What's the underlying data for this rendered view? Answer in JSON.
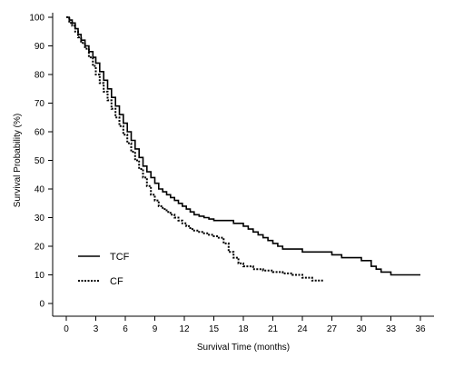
{
  "chart_data": {
    "type": "line",
    "title": "",
    "xlabel": "Survival Time (months)",
    "ylabel": "Survival Probability (%)",
    "xlim": [
      0,
      36
    ],
    "ylim": [
      0,
      100
    ],
    "x_ticks": [
      "0",
      "3",
      "6",
      "9",
      "12",
      "15",
      "18",
      "21",
      "24",
      "27",
      "30",
      "33",
      "36"
    ],
    "y_ticks": [
      "0",
      "10",
      "20",
      "30",
      "40",
      "50",
      "60",
      "70",
      "80",
      "90",
      "100"
    ],
    "grid": false,
    "legend_position": "bottom-left",
    "step": true,
    "series": [
      {
        "name": "TCF",
        "style": "solid",
        "x": [
          0,
          0.3,
          0.6,
          0.9,
          1.2,
          1.5,
          1.9,
          2.3,
          2.7,
          3.0,
          3.4,
          3.8,
          4.2,
          4.6,
          5.0,
          5.4,
          5.8,
          6.2,
          6.6,
          7.0,
          7.4,
          7.8,
          8.2,
          8.6,
          9.0,
          9.4,
          9.8,
          10.2,
          10.6,
          11.0,
          11.4,
          11.8,
          12.2,
          12.6,
          13.0,
          13.5,
          14.0,
          14.5,
          15.0,
          15.5,
          16.0,
          17.0,
          18.0,
          18.5,
          19.0,
          19.5,
          20.0,
          20.5,
          21.0,
          21.5,
          22.0,
          23.0,
          24.0,
          25.0,
          26.0,
          27.0,
          28.0,
          29.0,
          30.0,
          31.0,
          31.5,
          32.0,
          33.0,
          34.0,
          35.0,
          36.0
        ],
        "y": [
          100,
          99,
          98,
          96,
          94,
          92,
          90,
          88,
          86,
          84,
          81,
          78,
          75,
          72,
          69,
          66,
          63,
          60,
          57,
          54,
          51,
          48,
          46,
          44,
          42,
          40,
          39,
          38,
          37,
          36,
          35,
          34,
          33,
          32,
          31,
          30.5,
          30,
          29.5,
          29,
          29,
          29,
          28,
          27,
          26,
          25,
          24,
          23,
          22,
          21,
          20,
          19,
          19,
          18,
          18,
          18,
          17,
          16,
          16,
          15,
          13,
          12,
          11,
          10,
          10,
          10,
          10
        ]
      },
      {
        "name": "CF",
        "style": "dotted",
        "x": [
          0,
          0.3,
          0.6,
          0.9,
          1.2,
          1.5,
          1.9,
          2.3,
          2.7,
          3.0,
          3.4,
          3.8,
          4.2,
          4.6,
          5.0,
          5.4,
          5.8,
          6.2,
          6.6,
          7.0,
          7.4,
          7.8,
          8.2,
          8.6,
          9.0,
          9.4,
          9.8,
          10.2,
          10.6,
          11.0,
          11.4,
          11.8,
          12.2,
          12.6,
          13.0,
          13.5,
          14.0,
          14.5,
          15.0,
          15.5,
          16.0,
          16.5,
          17.0,
          17.5,
          18.0,
          19.0,
          20.0,
          21.0,
          22.0,
          23.0,
          24.0,
          25.0,
          26.0
        ],
        "y": [
          100,
          98,
          97,
          95,
          93,
          91,
          89,
          86,
          83,
          80,
          77,
          74,
          71,
          68,
          65,
          62,
          59,
          56,
          53,
          50,
          47,
          44,
          41,
          38,
          36,
          34,
          33,
          32,
          31,
          30,
          29,
          28,
          27,
          26,
          25.5,
          25,
          24.5,
          24,
          23.5,
          23,
          21,
          18,
          16,
          14,
          13,
          12,
          11.5,
          11,
          10.5,
          10,
          9,
          8,
          7.5
        ]
      }
    ]
  }
}
